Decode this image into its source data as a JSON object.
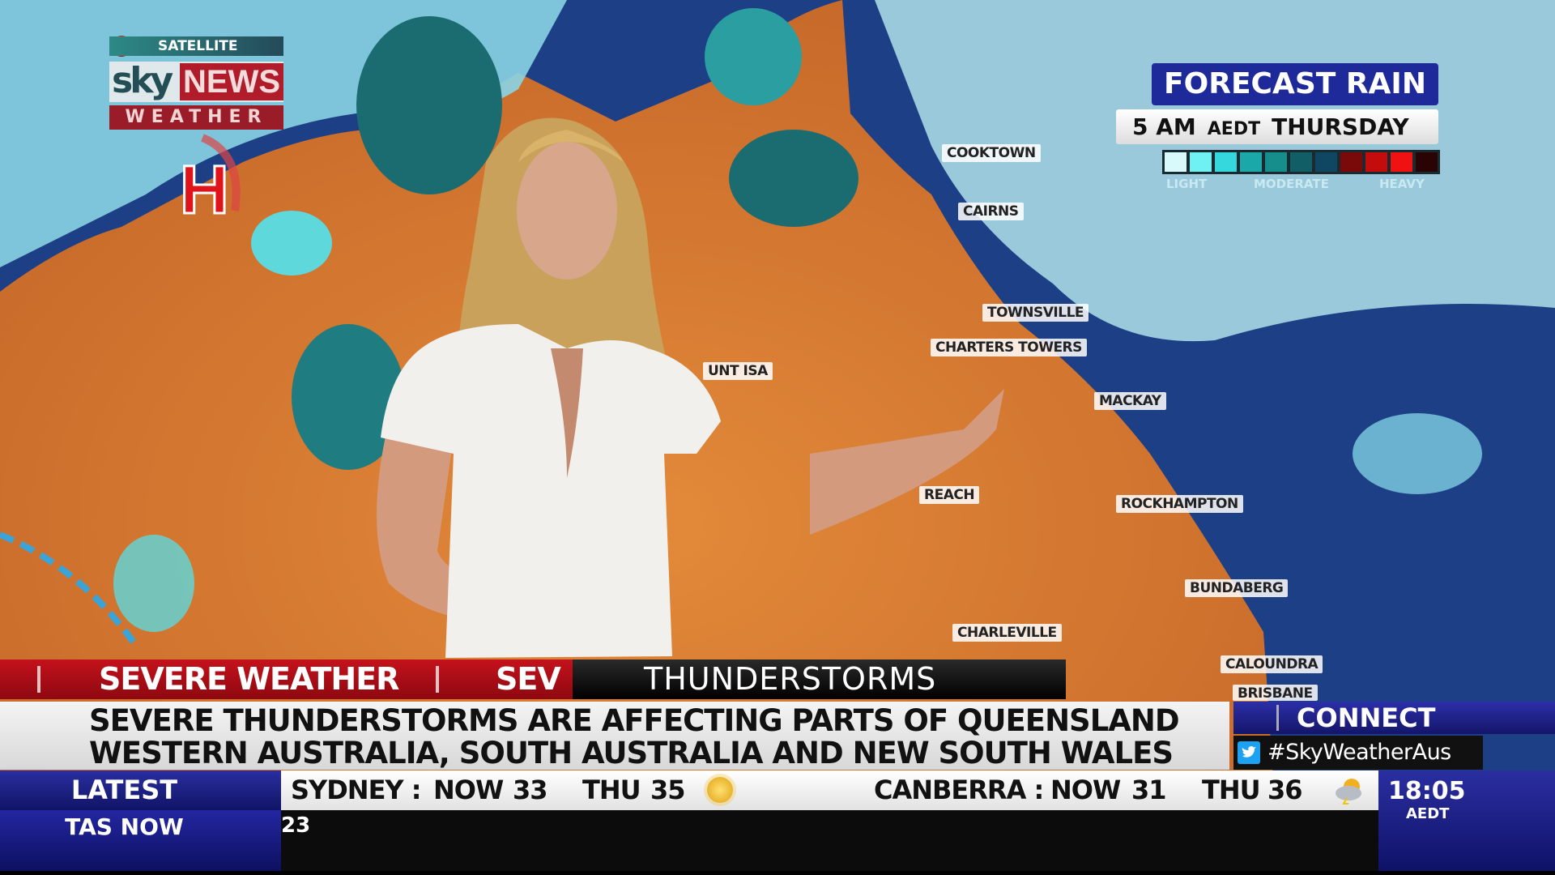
{
  "logo": {
    "satellite_label": "SATELLITE",
    "brand_sky": "sky",
    "brand_news": "NEWS",
    "brand_weather": "WEATHER"
  },
  "map": {
    "pressure_marker": "H",
    "cities": [
      "COOKTOWN",
      "CAIRNS",
      "TOWNSVILLE",
      "CHARTERS TOWERS",
      "UNT ISA",
      "MACKAY",
      "REACH",
      "ROCKHAMPTON",
      "BUNDABERG",
      "CHARLEVILLE",
      "CALOUNDRA",
      "BRISBANE"
    ]
  },
  "forecast": {
    "title": "FORECAST RAIN",
    "time": "5 AM",
    "timezone": "AEDT",
    "day": "THURSDAY",
    "legend_labels": [
      "LIGHT",
      "MODERATE",
      "HEAVY"
    ],
    "legend_colors": [
      "#d8fafa",
      "#6ff0f2",
      "#35d8dc",
      "#1aa8a8",
      "#168f8c",
      "#125e66",
      "#0f4763",
      "#7a0a0a",
      "#c40c0c",
      "#f01212",
      "#2a0404"
    ]
  },
  "lower_third": {
    "section_label": "SEVERE WEATHER",
    "section_label_repeat": "SEV",
    "topic": "THUNDERSTORMS",
    "headline_line1": "SEVERE THUNDERSTORMS ARE AFFECTING PARTS OF QUEENSLAND",
    "headline_line2": "WESTERN AUSTRALIA, SOUTH AUSTRALIA AND NEW SOUTH WALES",
    "connect_label": "CONNECT",
    "hashtag": "#SkyWeatherAus",
    "twitter_icon": "twitter-bird-icon"
  },
  "ticker": {
    "latest_label": "LATEST",
    "sub_label": "TAS NOW",
    "sub_value": "23",
    "weather": [
      {
        "city": "SYDNEY :",
        "now_label": "NOW",
        "now": "33",
        "day": "THU",
        "forecast": "35",
        "icon": "sunny-icon"
      },
      {
        "city": "CANBERRA :",
        "now_label": "NOW",
        "now": "31",
        "day": "THU",
        "forecast": "36",
        "icon": "storm-cloud-sun-icon"
      }
    ],
    "clock": "18:05",
    "clock_tz": "AEDT"
  },
  "colors": {
    "brand_red": "#b11c2a",
    "brand_blue": "#1f2a9a",
    "land": "#d8772e",
    "sea": "#1d3f86"
  }
}
